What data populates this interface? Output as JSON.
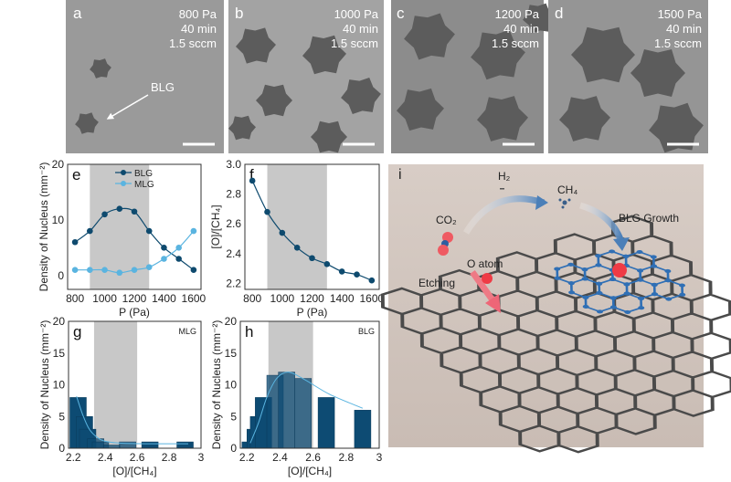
{
  "micrographs": [
    {
      "letter": "a",
      "pressure": "800 Pa",
      "time": "40 min",
      "flow": "1.5 sccm",
      "annotation": "BLG"
    },
    {
      "letter": "b",
      "pressure": "1000 Pa",
      "time": "40 min",
      "flow": "1.5 sccm"
    },
    {
      "letter": "c",
      "pressure": "1200 Pa",
      "time": "40 min",
      "flow": "1.5 sccm"
    },
    {
      "letter": "d",
      "pressure": "1500 Pa",
      "time": "40 min",
      "flow": "1.5 sccm"
    }
  ],
  "schematic": {
    "letter": "i",
    "h2": "H₂",
    "ch4": "CH₄",
    "co2": "CO₂",
    "growth": "BLG Growth",
    "o_atom": "O atom",
    "etching": "Etching"
  },
  "colors": {
    "dark": "#0e4a6e",
    "light": "#5ab4e0",
    "shade": "#c8c8c8",
    "bar": "#0d4b73"
  },
  "chart_data": [
    {
      "letter": "e",
      "type": "line",
      "xlabel": "P (Pa)",
      "ylabel": "Density of Nucleus (mm⁻²)",
      "xlim": [
        750,
        1650
      ],
      "ylim": [
        -2.5,
        20
      ],
      "xticks": [
        800,
        1000,
        1200,
        1400,
        1600
      ],
      "yticks": [
        0,
        10,
        20
      ],
      "shaded": [
        900,
        1300
      ],
      "legend": "top-center",
      "x": [
        800,
        900,
        1000,
        1100,
        1200,
        1300,
        1400,
        1500,
        1600
      ],
      "series": [
        {
          "name": "BLG",
          "color": "#0e4a6e",
          "values": [
            6,
            8,
            11,
            12,
            11.5,
            8,
            5,
            3,
            1
          ]
        },
        {
          "name": "MLG",
          "color": "#5ab4e0",
          "values": [
            1,
            1,
            1,
            0.5,
            1,
            1.5,
            3,
            5,
            8
          ]
        }
      ]
    },
    {
      "letter": "f",
      "type": "line",
      "xlabel": "P (Pa)",
      "ylabel": "[O]/[CH₄]",
      "xlim": [
        750,
        1650
      ],
      "ylim": [
        2.16,
        3.0
      ],
      "xticks": [
        800,
        1000,
        1200,
        1400,
        1600
      ],
      "yticks": [
        2.2,
        2.4,
        2.6,
        2.8,
        3.0
      ],
      "shaded": [
        900,
        1300
      ],
      "x": [
        800,
        900,
        1000,
        1100,
        1200,
        1300,
        1400,
        1500,
        1600
      ],
      "series": [
        {
          "color": "#0e4a6e",
          "values": [
            2.89,
            2.68,
            2.54,
            2.44,
            2.37,
            2.33,
            2.28,
            2.26,
            2.22
          ]
        }
      ]
    },
    {
      "letter": "g",
      "type": "bar",
      "label": "MLG",
      "xlabel": "[O]/[CH₄]",
      "ylabel": "Density of Nucleus (mm⁻²)",
      "xlim": [
        2.17,
        3.0
      ],
      "ylim": [
        0,
        20
      ],
      "xticks": [
        2.2,
        2.4,
        2.6,
        2.8,
        3.0
      ],
      "yticks": [
        0,
        5,
        10,
        15,
        20
      ],
      "shaded": [
        2.33,
        2.6
      ],
      "x": [
        2.23,
        2.27,
        2.29,
        2.34,
        2.37,
        2.44,
        2.54,
        2.68,
        2.9
      ],
      "values": [
        8,
        5,
        3,
        1.5,
        1,
        0.5,
        1,
        1,
        1
      ],
      "fit": [
        [
          2.22,
          8.2
        ],
        [
          2.26,
          5.2
        ],
        [
          2.3,
          3
        ],
        [
          2.35,
          1.7
        ],
        [
          2.4,
          1.1
        ],
        [
          2.5,
          0.8
        ],
        [
          2.7,
          0.7
        ],
        [
          2.92,
          0.7
        ]
      ]
    },
    {
      "letter": "h",
      "type": "bar",
      "label": "BLG",
      "xlabel": "[O]/[CH₄]",
      "ylabel": "Density of Nucleus (mm⁻²)",
      "xlim": [
        2.16,
        3.0
      ],
      "ylim": [
        0,
        20
      ],
      "xticks": [
        2.2,
        2.4,
        2.6,
        2.8,
        3.0
      ],
      "yticks": [
        0,
        5,
        10,
        15,
        20
      ],
      "shaded": [
        2.33,
        2.6
      ],
      "x": [
        2.22,
        2.25,
        2.27,
        2.3,
        2.37,
        2.44,
        2.54,
        2.68,
        2.9
      ],
      "values": [
        1,
        3,
        5,
        8,
        11.5,
        12,
        11,
        8,
        6
      ],
      "fit": [
        [
          2.22,
          0.8
        ],
        [
          2.27,
          4
        ],
        [
          2.32,
          8
        ],
        [
          2.38,
          11
        ],
        [
          2.45,
          12
        ],
        [
          2.55,
          10.8
        ],
        [
          2.7,
          8.5
        ],
        [
          2.9,
          6.3
        ]
      ]
    }
  ]
}
